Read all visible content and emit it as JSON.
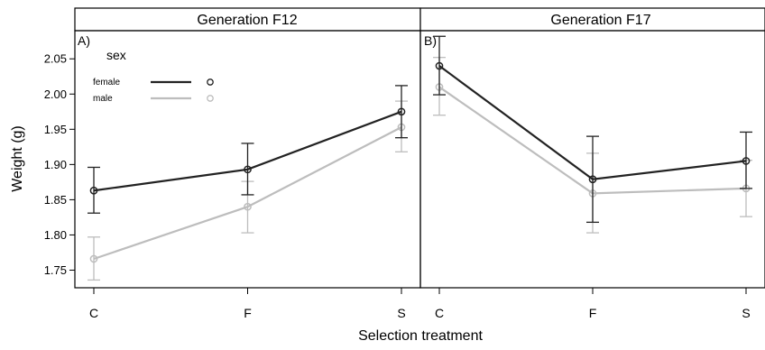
{
  "chart_data": {
    "type": "line",
    "x_label": "Selection treatment",
    "y_label": "Weight (g)",
    "categories": [
      "C",
      "F",
      "S"
    ],
    "ylim": [
      1.725,
      2.09
    ],
    "y_ticks": [
      "1.75",
      "1.80",
      "1.85",
      "1.90",
      "1.95",
      "2.00",
      "2.05"
    ],
    "y_tick_values": [
      1.75,
      1.8,
      1.85,
      1.9,
      1.95,
      2.0,
      2.05
    ],
    "legend": {
      "title": "sex",
      "placement": "top-left",
      "entries": [
        {
          "label": "female",
          "color": "#222222"
        },
        {
          "label": "male",
          "color": "#bdbdbd"
        }
      ]
    },
    "panels": [
      {
        "strip": "Generation F12",
        "panel_label": "A)",
        "series": [
          {
            "name": "female",
            "color": "#222222",
            "values": [
              1.863,
              1.893,
              1.975
            ],
            "lower": [
              1.831,
              1.857,
              1.938
            ],
            "upper": [
              1.896,
              1.93,
              2.012
            ]
          },
          {
            "name": "male",
            "color": "#bdbdbd",
            "values": [
              1.766,
              1.84,
              1.953
            ],
            "lower": [
              1.736,
              1.803,
              1.918
            ],
            "upper": [
              1.797,
              1.876,
              1.99
            ]
          }
        ]
      },
      {
        "strip": "Generation F17",
        "panel_label": "B)",
        "series": [
          {
            "name": "female",
            "color": "#222222",
            "values": [
              2.04,
              1.879,
              1.905
            ],
            "lower": [
              1.999,
              1.818,
              1.866
            ],
            "upper": [
              2.082,
              1.94,
              1.946
            ]
          },
          {
            "name": "male",
            "color": "#bdbdbd",
            "values": [
              2.01,
              1.859,
              1.866
            ],
            "lower": [
              1.97,
              1.803,
              1.826
            ],
            "upper": [
              2.052,
              1.916,
              1.906
            ]
          }
        ]
      }
    ]
  }
}
